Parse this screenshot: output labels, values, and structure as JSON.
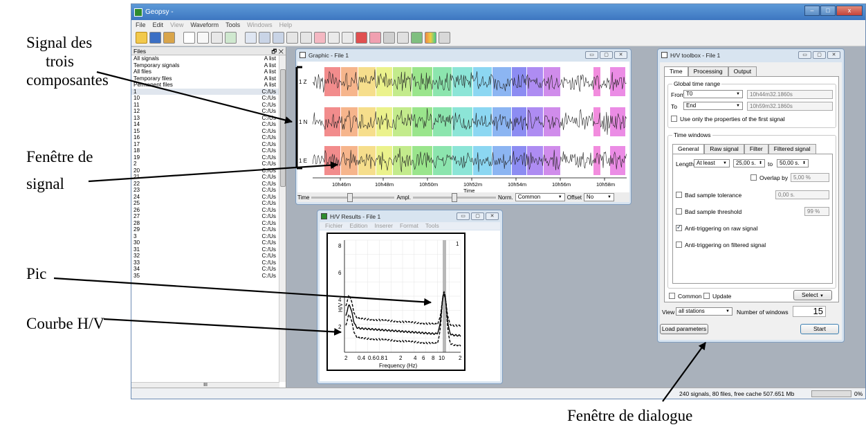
{
  "annotations": {
    "signal": [
      "Signal des",
      "trois",
      "composantes"
    ],
    "fenetre": [
      "Fenêtre de",
      "signal"
    ],
    "pic": "Pic",
    "courbe": "Courbe H/V",
    "dialogue": "Fenêtre de dialogue"
  },
  "app": {
    "title": "Geopsy -",
    "menu": [
      "File",
      "Edit",
      "View",
      "Waveform",
      "Tools",
      "Windows",
      "Help"
    ]
  },
  "files_panel": {
    "title": "Files",
    "rows": [
      [
        "All signals",
        "A list"
      ],
      [
        "Temporary signals",
        "A list"
      ],
      [
        "All files",
        "A list"
      ],
      [
        "Temporary files",
        "A list"
      ],
      [
        "Permanent files",
        "A list"
      ],
      [
        "1",
        "C:/Us"
      ],
      [
        "10",
        "C:/Us"
      ],
      [
        "11",
        "C:/Us"
      ],
      [
        "12",
        "C:/Us"
      ],
      [
        "13",
        "C:/Us"
      ],
      [
        "14",
        "C:/Us"
      ],
      [
        "15",
        "C:/Us"
      ],
      [
        "16",
        "C:/Us"
      ],
      [
        "17",
        "C:/Us"
      ],
      [
        "18",
        "C:/Us"
      ],
      [
        "19",
        "C:/Us"
      ],
      [
        "2",
        "C:/Us"
      ],
      [
        "20",
        "C:/Us"
      ],
      [
        "21",
        "C:/Us"
      ],
      [
        "22",
        "C:/Us"
      ],
      [
        "23",
        "C:/Us"
      ],
      [
        "24",
        "C:/Us"
      ],
      [
        "25",
        "C:/Us"
      ],
      [
        "26",
        "C:/Us"
      ],
      [
        "27",
        "C:/Us"
      ],
      [
        "28",
        "C:/Us"
      ],
      [
        "29",
        "C:/Us"
      ],
      [
        "3",
        "C:/Us"
      ],
      [
        "30",
        "C:/Us"
      ],
      [
        "31",
        "C:/Us"
      ],
      [
        "32",
        "C:/Us"
      ],
      [
        "33",
        "C:/Us"
      ],
      [
        "34",
        "C:/Us"
      ],
      [
        "35",
        "C:/Us"
      ]
    ],
    "hscroll": "III"
  },
  "graphic": {
    "title": "Graphic - File 1",
    "channels": [
      "1 Z",
      "1 N",
      "1 E"
    ],
    "ticks": [
      "10h46m",
      "10h48m",
      "10h50m",
      "10h52m",
      "10h54m",
      "10h56m",
      "10h58m"
    ],
    "axis_label": "Time",
    "ctrl": {
      "time": "Time",
      "ampl": "Ampl.",
      "norm": "Norm.",
      "norm_value": "Common",
      "offset": "Offset",
      "offset_value": "No"
    }
  },
  "hv_results": {
    "title": "H/V Results - File 1",
    "menu": [
      "Fichier",
      "Edition",
      "Inserer",
      "Format",
      "Tools"
    ],
    "y_ticks": [
      "8",
      "6",
      "4",
      "2"
    ],
    "x_ticks": [
      "2",
      "0.4",
      "0.6",
      "0.8",
      "1",
      "2",
      "4",
      "6",
      "8",
      "10",
      "2"
    ],
    "xlabel": "Frequency (Hz)",
    "ylabel": "H/V",
    "corner": "1"
  },
  "toolbox": {
    "title": "H/V toolbox - File 1",
    "tabs": [
      "Time",
      "Processing",
      "Output"
    ],
    "global_range": "Global time range",
    "from_label": "From",
    "from_value": "T0",
    "from_time": "10h44m32.1860s",
    "to_label": "To",
    "to_value": "End",
    "to_time": "10h59m32.1860s",
    "use_first": "Use only the properties of the first signal",
    "time_windows": "Time windows",
    "subtabs": [
      "General",
      "Raw signal",
      "Filter",
      "Filtered signal"
    ],
    "length_label": "Length",
    "length_mode": "At least",
    "length_min": "25,00 s.",
    "to_word": "to",
    "length_max": "50,00 s.",
    "overlap_label": "Overlap by",
    "overlap_value": "5,00 %",
    "bad_tol": "Bad sample tolerance",
    "bad_tol_value": "0,00 s.",
    "bad_thr": "Bad sample threshold",
    "bad_thr_value": "99 %",
    "anti_raw": "Anti-triggering on raw signal",
    "anti_filtered": "Anti-triggering on filtered signal",
    "common": "Common",
    "update": "Update",
    "select": "Select",
    "view_label": "View",
    "view_value": "all stations",
    "nwin_label": "Number of windows",
    "nwin_value": "15",
    "load_btn": "Load parameters",
    "start_btn": "Start"
  },
  "status": {
    "text": "240 signals, 80 files, free cache 507.651 Mb",
    "percent": "0%"
  }
}
